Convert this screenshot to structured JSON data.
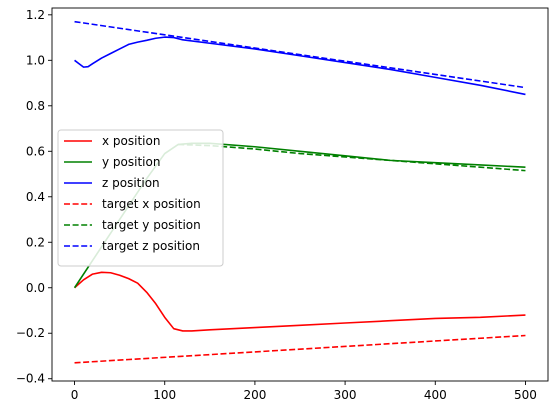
{
  "chart_data": {
    "type": "line",
    "title": "",
    "xlabel": "",
    "ylabel": "",
    "xlim": [
      -25,
      525
    ],
    "ylim": [
      -0.41,
      1.23
    ],
    "x_ticks": [
      0,
      100,
      200,
      300,
      400,
      500
    ],
    "x_tick_labels": [
      "0",
      "100",
      "200",
      "300",
      "400",
      "500"
    ],
    "y_ticks": [
      -0.4,
      -0.2,
      0.0,
      0.2,
      0.4,
      0.6,
      0.8,
      1.0,
      1.2
    ],
    "y_tick_labels": [
      "−0.4",
      "−0.2",
      "0.0",
      "0.2",
      "0.4",
      "0.6",
      "0.8",
      "1.0",
      "1.2"
    ],
    "grid": false,
    "legend_position": "center-left",
    "series": [
      {
        "name": "x position",
        "color": "#ff0000",
        "dash": "solid",
        "x": [
          0,
          10,
          20,
          30,
          40,
          50,
          60,
          70,
          80,
          90,
          100,
          110,
          120,
          130,
          150,
          200,
          250,
          300,
          350,
          400,
          450,
          500
        ],
        "y": [
          0.0,
          0.035,
          0.06,
          0.068,
          0.066,
          0.055,
          0.04,
          0.02,
          -0.02,
          -0.07,
          -0.13,
          -0.18,
          -0.19,
          -0.19,
          -0.185,
          -0.175,
          -0.165,
          -0.155,
          -0.145,
          -0.135,
          -0.13,
          -0.12
        ]
      },
      {
        "name": "y position",
        "color": "#008000",
        "dash": "solid",
        "x": [
          0,
          20,
          40,
          60,
          80,
          100,
          115,
          130,
          150,
          200,
          250,
          300,
          350,
          400,
          450,
          500
        ],
        "y": [
          0.0,
          0.12,
          0.24,
          0.36,
          0.48,
          0.59,
          0.63,
          0.635,
          0.635,
          0.62,
          0.6,
          0.58,
          0.56,
          0.55,
          0.54,
          0.53
        ]
      },
      {
        "name": "z position",
        "color": "#0000ff",
        "dash": "solid",
        "x": [
          0,
          5,
          10,
          15,
          20,
          30,
          40,
          50,
          60,
          70,
          80,
          90,
          100,
          110,
          120,
          150,
          200,
          250,
          300,
          350,
          400,
          450,
          500
        ],
        "y": [
          1.0,
          0.985,
          0.97,
          0.972,
          0.985,
          1.01,
          1.03,
          1.05,
          1.07,
          1.08,
          1.088,
          1.097,
          1.102,
          1.1,
          1.09,
          1.075,
          1.05,
          1.02,
          0.99,
          0.96,
          0.925,
          0.89,
          0.85
        ]
      },
      {
        "name": "target x position",
        "color": "#ff0000",
        "dash": "dashed",
        "x": [
          0,
          500
        ],
        "y": [
          -0.33,
          -0.21
        ]
      },
      {
        "name": "target y position",
        "color": "#008000",
        "dash": "dashed",
        "x": [
          115,
          150,
          200,
          250,
          300,
          350,
          400,
          450,
          500
        ],
        "y": [
          0.63,
          0.625,
          0.61,
          0.59,
          0.575,
          0.56,
          0.545,
          0.53,
          0.515
        ]
      },
      {
        "name": "target z position",
        "color": "#0000ff",
        "dash": "dashed",
        "x": [
          0,
          500
        ],
        "y": [
          1.17,
          0.88
        ]
      }
    ]
  }
}
